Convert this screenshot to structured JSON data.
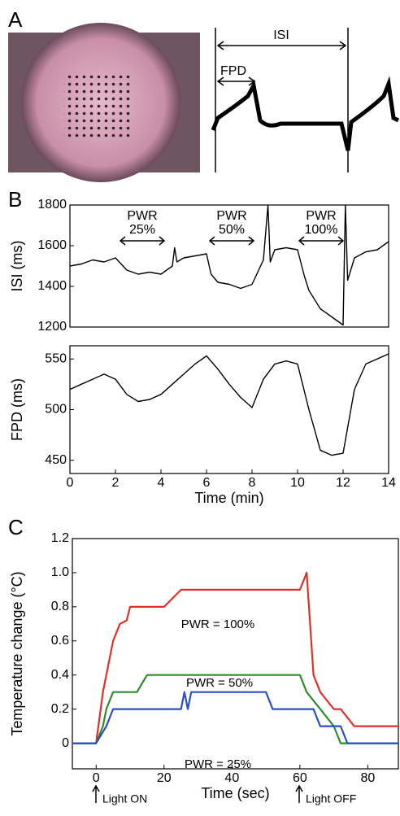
{
  "figure": {
    "panel_labels": [
      "A",
      "B",
      "C"
    ],
    "trace_labels": [
      "ISI",
      "FPD"
    ]
  },
  "chart_data": [
    {
      "type": "line",
      "y_label": "ISI (ms)",
      "x": [
        0,
        0.5,
        1,
        1.5,
        2,
        2.5,
        3,
        3.5,
        4,
        4.5,
        4.6,
        4.7,
        5,
        5.5,
        6,
        6.2,
        6.5,
        7,
        7.5,
        8,
        8.5,
        8.7,
        8.8,
        9,
        9.5,
        10,
        10.3,
        10.5,
        11,
        11.5,
        12,
        12.1,
        12.2,
        12.5,
        13,
        13.5,
        14
      ],
      "series": [
        {
          "color": "#000000",
          "values": [
            1500,
            1510,
            1530,
            1520,
            1540,
            1480,
            1460,
            1470,
            1460,
            1500,
            1590,
            1520,
            1540,
            1550,
            1560,
            1460,
            1420,
            1410,
            1390,
            1410,
            1530,
            1800,
            1520,
            1580,
            1590,
            1580,
            1450,
            1380,
            1290,
            1250,
            1210,
            1800,
            1430,
            1540,
            1570,
            1580,
            1620
          ]
        }
      ],
      "xlim": [
        0,
        14
      ],
      "ylim": [
        1200,
        1800
      ],
      "yticks": [
        1200,
        1400,
        1600,
        1800
      ],
      "annotations": [
        [
          "PWR",
          "25%"
        ],
        [
          "PWR",
          "50%"
        ],
        [
          "PWR",
          "100%"
        ]
      ]
    },
    {
      "type": "line",
      "y_label": "FPD (ms)",
      "x_label": "Time (min)",
      "x": [
        0,
        0.5,
        1,
        1.5,
        2,
        2.5,
        3,
        3.5,
        4,
        4.5,
        5,
        5.5,
        6,
        6.5,
        7,
        7.5,
        8,
        8.5,
        9,
        9.5,
        10,
        10.5,
        11,
        11.5,
        12,
        12.5,
        13,
        13.5,
        14
      ],
      "series": [
        {
          "color": "#000000",
          "values": [
            520,
            525,
            530,
            535,
            530,
            515,
            508,
            510,
            515,
            525,
            535,
            545,
            553,
            540,
            525,
            512,
            502,
            530,
            545,
            548,
            545,
            500,
            460,
            455,
            457,
            520,
            545,
            550,
            555
          ]
        }
      ],
      "xlim": [
        0,
        14
      ],
      "ylim": [
        437,
        563
      ],
      "yticks": [
        450,
        500,
        550
      ],
      "xticks": [
        0,
        2,
        4,
        6,
        8,
        10,
        12,
        14
      ]
    },
    {
      "type": "line",
      "y_label": "Temperature change (°C)",
      "x_label": "Time (sec)",
      "series": [
        {
          "name": "PWR = 100%",
          "color": "#e0302a",
          "x": [
            -7,
            0,
            2,
            5,
            7,
            9,
            10,
            12,
            20,
            25,
            60,
            62,
            64,
            66,
            70,
            72,
            76,
            80,
            89
          ],
          "values": [
            0,
            0,
            0.3,
            0.6,
            0.7,
            0.72,
            0.8,
            0.8,
            0.8,
            0.9,
            0.9,
            1.0,
            0.4,
            0.3,
            0.2,
            0.2,
            0.1,
            0.1,
            0.1
          ]
        },
        {
          "name": "PWR = 50%",
          "color": "#2e8b2e",
          "x": [
            -7,
            0,
            2,
            3,
            5,
            12,
            15,
            60,
            62,
            66,
            70,
            72,
            89
          ],
          "values": [
            0,
            0,
            0.1,
            0.2,
            0.3,
            0.3,
            0.4,
            0.4,
            0.3,
            0.2,
            0.1,
            0,
            0
          ]
        },
        {
          "name": "PWR = 25%",
          "color": "#2a4fc0",
          "x": [
            -7,
            0,
            3,
            5,
            25,
            26,
            27,
            28,
            30,
            50,
            52,
            60,
            64,
            66,
            72,
            74,
            89
          ],
          "values": [
            0,
            0,
            0.1,
            0.2,
            0.2,
            0.3,
            0.2,
            0.3,
            0.3,
            0.3,
            0.2,
            0.2,
            0.2,
            0.1,
            0.1,
            0,
            0
          ]
        }
      ],
      "xlim": [
        -7,
        89
      ],
      "ylim": [
        -0.15,
        1.2
      ],
      "xticks": [
        0,
        20,
        40,
        60,
        80
      ],
      "yticks": [
        0,
        0.2,
        0.4,
        0.6,
        0.8,
        {
          "value": 1,
          "label": "1.0"
        },
        1.2
      ],
      "annotations": [
        "Light ON",
        "Light OFF"
      ]
    }
  ]
}
